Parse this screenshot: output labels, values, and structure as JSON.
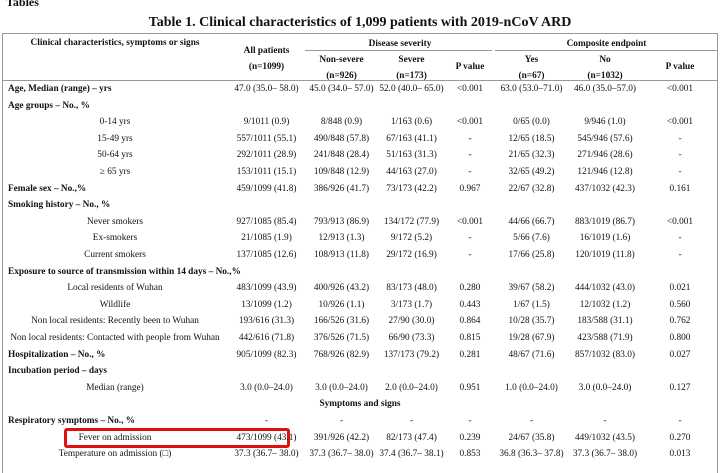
{
  "header": {
    "caption": "Tables",
    "title": "Table 1. Clinical characteristics of 1,099 patients with 2019-nCoV ARD"
  },
  "table": {
    "columns": {
      "stub": "Clinical characteristics, symptoms or signs",
      "all": [
        "All patients",
        "(n=1099)"
      ],
      "groups": [
        {
          "title": "Disease severity",
          "columns": [
            [
              "Non-severe",
              "(n=926)"
            ],
            [
              "Severe",
              "(n=173)"
            ],
            [
              "P value"
            ]
          ]
        },
        {
          "title": "Composite endpoint",
          "columns": [
            [
              "Yes",
              "(n=67)"
            ],
            [
              "No",
              "(n=1032)"
            ],
            [
              "P value"
            ]
          ]
        }
      ]
    },
    "parts": [
      {
        "rows": [
          {
            "label": "Age, Median (range) – yrs",
            "values": [
              "47.0 (35.0– 58.0)",
              "45.0 (34.0– 57.0)",
              "52.0 (40.0– 65.0)",
              "<0.001",
              "63.0 (53.0–71.0)",
              "46.0 (35.0–57.0)",
              "<0.001"
            ]
          },
          {
            "label": "Age groups – No., %",
            "items": [
              {
                "label": "0-14 yrs",
                "values": [
                  "9/1011 (0.9)",
                  "8/848 (0.9)",
                  "1/163 (0.6)",
                  "<0.001",
                  "0/65 (0.0)",
                  "9/946 (1.0)",
                  "<0.001"
                ]
              },
              {
                "label": "15-49 yrs",
                "values": [
                  "557/1011 (55.1)",
                  "490/848 (57.8)",
                  "67/163 (41.1)",
                  "-",
                  "12/65 (18.5)",
                  "545/946 (57.6)",
                  "-"
                ]
              },
              {
                "label": "50-64 yrs",
                "values": [
                  "292/1011 (28.9)",
                  "241/848 (28.4)",
                  "51/163 (31.3)",
                  "-",
                  "21/65 (32.3)",
                  "271/946 (28.6)",
                  "-"
                ]
              },
              {
                "label": "≥ 65 yrs",
                "values": [
                  "153/1011 (15.1)",
                  "109/848 (12.9)",
                  "44/163 (27.0)",
                  "-",
                  "32/65 (49.2)",
                  "121/946 (12.8)",
                  "-"
                ]
              }
            ]
          },
          {
            "label": "Female sex – No.,%",
            "values": [
              "459/1099 (41.8)",
              "386/926 (41.7)",
              "73/173 (42.2)",
              "0.967",
              "22/67 (32.8)",
              "437/1032 (42.3)",
              "0.161"
            ]
          },
          {
            "label": "Smoking history – No., %",
            "items": [
              {
                "label": "Never smokers",
                "values": [
                  "927/1085 (85.4)",
                  "793/913 (86.9)",
                  "134/172 (77.9)",
                  "<0.001",
                  "44/66 (66.7)",
                  "883/1019 (86.7)",
                  "<0.001"
                ]
              },
              {
                "label": "Ex-smokers",
                "values": [
                  "21/1085 (1.9)",
                  "12/913 (1.3)",
                  "9/172 (5.2)",
                  "-",
                  "5/66 (7.6)",
                  "16/1019 (1.6)",
                  "-"
                ]
              },
              {
                "label": "Current smokers",
                "values": [
                  "137/1085 (12.6)",
                  "108/913 (11.8)",
                  "29/172 (16.9)",
                  "-",
                  "17/66 (25.8)",
                  "120/1019 (11.8)",
                  "-"
                ]
              }
            ]
          },
          {
            "label": "Exposure to source of transmission within 14 days – No.,%",
            "items": [
              {
                "label": "Local residents of Wuhan",
                "values": [
                  "483/1099 (43.9)",
                  "400/926 (43.2)",
                  "83/173 (48.0)",
                  "0.280",
                  "39/67 (58.2)",
                  "444/1032 (43.0)",
                  "0.021"
                ]
              },
              {
                "label": "Wildlife",
                "values": [
                  "13/1099 (1.2)",
                  "10/926 (1.1)",
                  "3/173 (1.7)",
                  "0.443",
                  "1/67 (1.5)",
                  "12/1032 (1.2)",
                  "0.560"
                ]
              },
              {
                "label": "Non local residents: Recently been to Wuhan",
                "values": [
                  "193/616 (31.3)",
                  "166/526 (31.6)",
                  "27/90 (30.0)",
                  "0.864",
                  "10/28 (35.7)",
                  "183/588 (31.1)",
                  "0.762"
                ]
              },
              {
                "label": "Non local residents: Contacted with people from Wuhan",
                "values": [
                  "442/616 (71.8)",
                  "376/526 (71.5)",
                  "66/90 (73.3)",
                  "0.815",
                  "19/28 (67.9)",
                  "423/588 (71.9)",
                  "0.800"
                ]
              }
            ]
          },
          {
            "label": "Hospitalization – No., %",
            "values": [
              "905/1099 (82.3)",
              "768/926 (82.9)",
              "137/173 (79.2)",
              "0.281",
              "48/67 (71.6)",
              "857/1032 (83.0)",
              "0.027"
            ]
          },
          {
            "label": "Incubation period – days",
            "items": [
              {
                "label": "Median (range)",
                "values": [
                  "3.0 (0.0–24.0)",
                  "3.0 (0.0–24.0)",
                  "2.0 (0.0–24.0)",
                  "0.951",
                  "1.0 (0.0–24.0)",
                  "3.0 (0.0–24.0)",
                  "0.127"
                ]
              }
            ]
          }
        ]
      },
      {
        "heading": "Symptoms and signs",
        "rows": [
          {
            "label": "Respiratory symptoms – No., %",
            "values": [
              "-",
              "-",
              "-",
              "-",
              "-",
              "-",
              "-"
            ],
            "items": [
              {
                "label": "Fever on admission",
                "values": [
                  "473/1099 (43.1)",
                  "391/926 (42.2)",
                  "82/173 (47.4)",
                  "0.239",
                  "24/67 (35.8)",
                  "449/1032 (43.5)",
                  "0.270"
                ]
              },
              {
                "label": "Temperature on admission (□)",
                "values": [
                  "37.3 (36.7– 38.0)",
                  "37.3 (36.7– 38.0)",
                  "37.4 (36.7– 38.1)",
                  "0.853",
                  "36.8 (36.3– 37.8)",
                  "37.3 (36.7– 38.0)",
                  "0.013"
                ]
              }
            ]
          }
        ]
      }
    ]
  }
}
